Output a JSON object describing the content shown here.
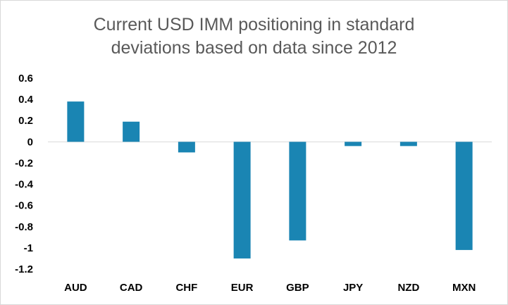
{
  "chart_data": {
    "type": "bar",
    "title_lines": [
      "Current USD IMM positioning in standard",
      "deviations based on data since 2012"
    ],
    "categories": [
      "AUD",
      "CAD",
      "CHF",
      "EUR",
      "GBP",
      "JPY",
      "NZD",
      "MXN"
    ],
    "values": [
      0.38,
      0.19,
      -0.1,
      -1.1,
      -0.93,
      -0.04,
      -0.04,
      -1.02
    ],
    "ylim": [
      -1.2,
      0.6
    ],
    "yticks": [
      0.6,
      0.4,
      0.2,
      0,
      -0.2,
      -0.4,
      -0.6,
      -0.8,
      -1,
      -1.2
    ],
    "ytick_labels": [
      "0.6",
      "0.4",
      "0.2",
      "0",
      "-0.2",
      "-0.4",
      "-0.6",
      "-0.8",
      "-1",
      "-1.2"
    ],
    "grid": false,
    "legend": "none",
    "bar_color": "#1a85b3",
    "axis_color": "#d9d9d9"
  }
}
